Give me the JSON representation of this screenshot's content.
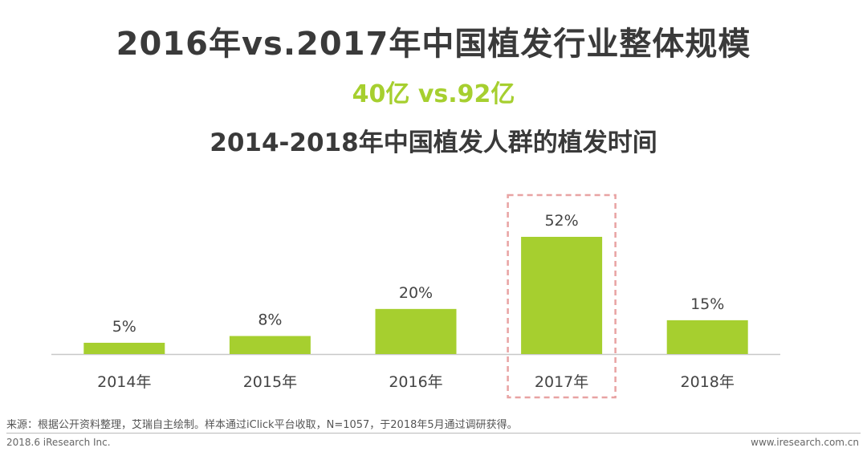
{
  "header": {
    "title": "2016年vs.2017年中国植发行业整体规模",
    "subtitle": "40亿 vs.92亿"
  },
  "chart_data": {
    "type": "bar",
    "title": "2014-2018年中国植发人群的植发时间",
    "categories": [
      "2014年",
      "2015年",
      "2016年",
      "2017年",
      "2018年"
    ],
    "values": [
      5,
      8,
      20,
      52,
      15
    ],
    "value_labels": [
      "5%",
      "8%",
      "20%",
      "52%",
      "15%"
    ],
    "unit": "%",
    "highlight": "2017年",
    "bar_color": "#a6cf2f",
    "highlight_color": "#e8a3a3",
    "grid": false,
    "ylim": [
      0,
      60
    ]
  },
  "footer": {
    "source": "来源：根据公开资料整理，艾瑞自主绘制。样本通过iClick平台收取，N=1057，于2018年5月通过调研获得。",
    "left": "2018.6 iResearch Inc.",
    "right": "www.iresearch.com.cn"
  }
}
